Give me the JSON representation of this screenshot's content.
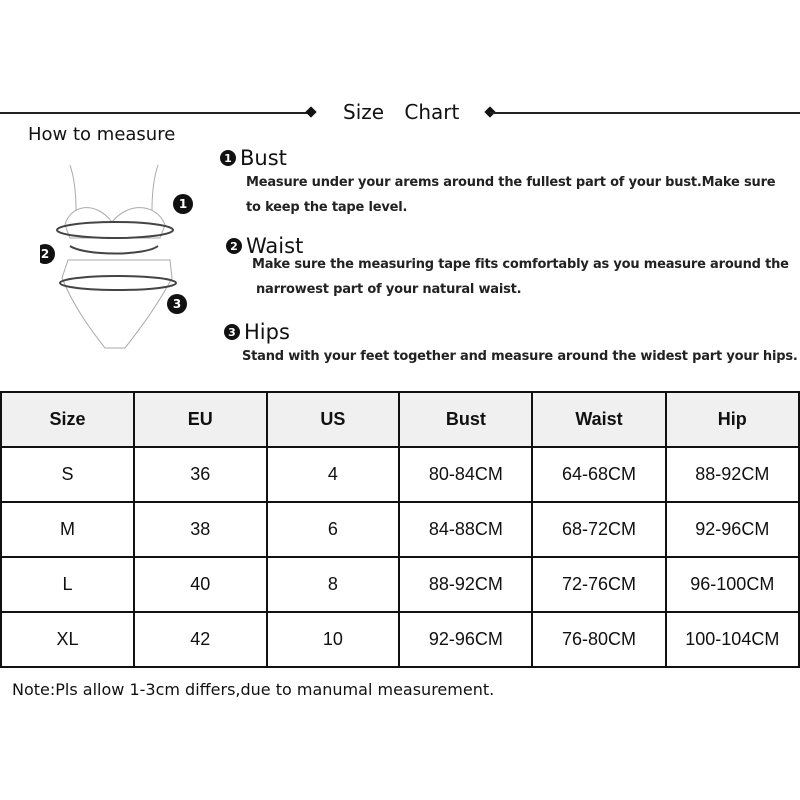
{
  "title": "Size Chart",
  "how_to_measure": "How to measure",
  "sections": [
    {
      "num": "1",
      "heading": "Bust",
      "lines": [
        "Measure under your arems around the fullest part of your bust.Make sure",
        "to keep the tape level."
      ]
    },
    {
      "num": "2",
      "heading": "Waist",
      "lines": [
        "Make sure the measuring tape fits comfortably as you measure around the",
        "narrowest part of your natural waist."
      ]
    },
    {
      "num": "3",
      "heading": "Hips",
      "lines": [
        "Stand with your feet together and measure around the widest part your hips."
      ]
    }
  ],
  "figure_labels": [
    "1",
    "2",
    "3"
  ],
  "table": {
    "headers": [
      "Size",
      "EU",
      "US",
      "Bust",
      "Waist",
      "Hip"
    ],
    "rows": [
      [
        "S",
        "36",
        "4",
        "80-84CM",
        "64-68CM",
        "88-92CM"
      ],
      [
        "M",
        "38",
        "6",
        "84-88CM",
        "68-72CM",
        "92-96CM"
      ],
      [
        "L",
        "40",
        "8",
        "88-92CM",
        "72-76CM",
        "96-100CM"
      ],
      [
        "XL",
        "42",
        "10",
        "92-96CM",
        "76-80CM",
        "100-104CM"
      ]
    ]
  },
  "note": "Note:Pls allow 1-3cm differs,due to manumal measurement."
}
